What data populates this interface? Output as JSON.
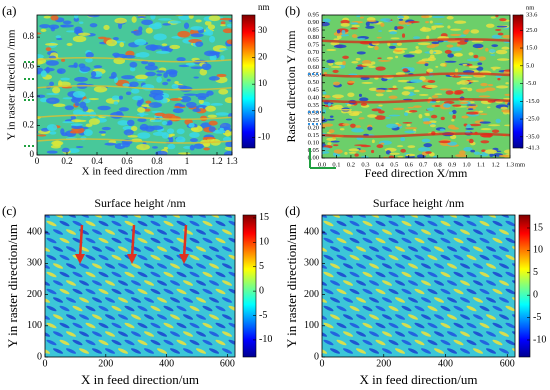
{
  "chart_data": [
    {
      "type": "heatmap",
      "panel_label": "(a)",
      "x_label": "X in feed direction /mm",
      "y_label": "Y in raster direction /mm",
      "xlim": [
        0,
        1.3
      ],
      "xticks": [
        0,
        0.2,
        0.4,
        0.6,
        0.8,
        1,
        1.2,
        1.3
      ],
      "ylim": [
        0,
        0.95
      ],
      "yticks": [
        0,
        0.2,
        0.4,
        0.6,
        0.8
      ],
      "colorbar_label": "nm",
      "zlim": [
        -14,
        36
      ],
      "zticks": [
        -10,
        0,
        10,
        20,
        30
      ],
      "colormap": "jet"
    },
    {
      "type": "heatmap",
      "panel_label": "(b)",
      "x_label": "Feed direction X/mm",
      "y_label": "Raster direction Y /mm",
      "x_unit": "mm",
      "xlim": [
        0,
        1.3
      ],
      "xticks": [
        {
          "value": 0,
          "label": "0.0"
        },
        0.1,
        0.2,
        0.3,
        0.4,
        0.5,
        0.6,
        0.7,
        0.8,
        0.9,
        {
          "value": 1,
          "label": "1.0"
        },
        1.1,
        1.2,
        1.3
      ],
      "ylim": [
        0,
        0.95
      ],
      "yticks": [
        {
          "value": 0,
          "label": "0.00"
        },
        0.05,
        {
          "value": 0.1,
          "label": "0.10"
        },
        0.15,
        {
          "value": 0.2,
          "label": "0.20"
        },
        0.25,
        {
          "value": 0.3,
          "label": "0.30"
        },
        0.35,
        {
          "value": 0.4,
          "label": "0.40"
        },
        0.45,
        {
          "value": 0.5,
          "label": "0.50"
        },
        0.55,
        {
          "value": 0.6,
          "label": "0.60"
        },
        0.65,
        {
          "value": 0.7,
          "label": "0.70"
        },
        0.75,
        {
          "value": 0.8,
          "label": "0.80"
        },
        0.85,
        {
          "value": 0.9,
          "label": "0.90"
        },
        0.95
      ],
      "colorbar_label": "nm",
      "zlim": [
        -41.3,
        33.6
      ],
      "zticks": [
        -41.3,
        {
          "value": -35,
          "label": "-35.0"
        },
        {
          "value": -25,
          "label": "-25.0"
        },
        {
          "value": -15,
          "label": "-15.0"
        },
        {
          "value": -5,
          "label": "-5.0"
        },
        {
          "value": 5,
          "label": "5.0"
        },
        {
          "value": 15,
          "label": "15.0"
        },
        {
          "value": 25,
          "label": "25.0"
        },
        33.6
      ],
      "colormap": "jet"
    },
    {
      "type": "heatmap",
      "panel_label": "(c)",
      "title": "Surface height /nm",
      "x_label": "X in feed direction/um",
      "y_label": "Y in raster direction/um",
      "xlim": [
        0,
        625
      ],
      "xticks": [
        0,
        200,
        400,
        600
      ],
      "ylim": [
        0,
        455
      ],
      "yticks": [
        0,
        100,
        200,
        300,
        400
      ],
      "zlim": [
        -13.5,
        15.6
      ],
      "zticks": [
        -10,
        -5,
        0,
        5,
        10,
        15
      ],
      "colormap": "jet"
    },
    {
      "type": "heatmap",
      "panel_label": "(d)",
      "title": "Surface height /nm",
      "x_label": "X in feed direction/um",
      "y_label": "Y in raster direction/um",
      "xlim": [
        0,
        625
      ],
      "xticks": [
        0,
        200,
        400,
        600
      ],
      "ylim": [
        0,
        455
      ],
      "yticks": [
        0,
        100,
        200,
        300,
        400
      ],
      "zlim": [
        -13.8,
        17.9
      ],
      "zticks": [
        -10,
        -5,
        0,
        5,
        10,
        15
      ],
      "colormap": "jet"
    }
  ]
}
